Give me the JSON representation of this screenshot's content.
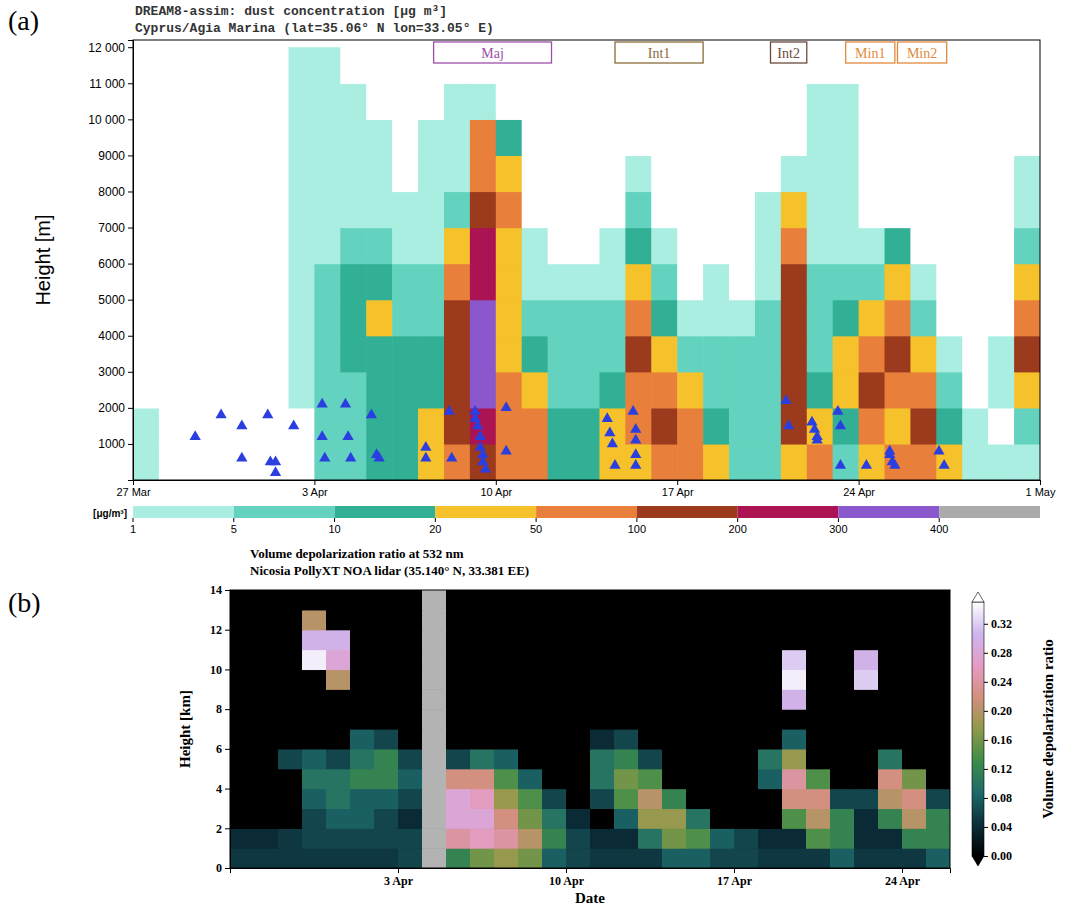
{
  "chart_data": [
    {
      "panel": "(a)",
      "type": "heatmap",
      "title": "DREAM8-assim: dust concentration [μg m³]",
      "subtitle": "Cyprus/Agia Marina (lat=35.06° N lon=33.05° E)",
      "ylabel": "Height [m]",
      "xlim": [
        0,
        35
      ],
      "xticks": [
        {
          "value": 0,
          "label": "27 Mar"
        },
        {
          "value": 7,
          "label": "3 Apr"
        },
        {
          "value": 14,
          "label": "10 Apr"
        },
        {
          "value": 21,
          "label": "17 Apr"
        },
        {
          "value": 28,
          "label": "24 Apr"
        },
        {
          "value": 35,
          "label": "1 May"
        }
      ],
      "ylim": [
        0,
        12200
      ],
      "yticks": [
        1000,
        2000,
        3000,
        4000,
        5000,
        6000,
        7000,
        8000,
        9000,
        {
          "value": 10000,
          "label": "10 000"
        },
        {
          "value": 11000,
          "label": "11 000"
        },
        {
          "value": 12000,
          "label": "12 000"
        }
      ],
      "x_edges": [
        0,
        1,
        2,
        3,
        4,
        5,
        6,
        7,
        8,
        9,
        10,
        11,
        12,
        13,
        14,
        15,
        16,
        17,
        18,
        19,
        20,
        21,
        22,
        23,
        24,
        25,
        26,
        27,
        28,
        29,
        30,
        31,
        32,
        33,
        34,
        35
      ],
      "y_edges": [
        0,
        1000,
        2000,
        3000,
        4000,
        5000,
        6000,
        7000,
        8000,
        9000,
        10000,
        11000,
        12000
      ],
      "z": [
        [
          2,
          0,
          0,
          0,
          0,
          0,
          0,
          5,
          7,
          15,
          15,
          30,
          70,
          150,
          70,
          70,
          15,
          15,
          30,
          30,
          70,
          70,
          30,
          8,
          8,
          30,
          70,
          8,
          30,
          70,
          70,
          30,
          3,
          2,
          3
        ],
        [
          2,
          0,
          0,
          0,
          0,
          0,
          0,
          5,
          7,
          12,
          12,
          30,
          150,
          250,
          70,
          70,
          15,
          15,
          30,
          70,
          150,
          70,
          15,
          8,
          8,
          150,
          30,
          15,
          70,
          30,
          150,
          15,
          2,
          0,
          8
        ],
        [
          0,
          0,
          0,
          0,
          0,
          0,
          2,
          5,
          8,
          12,
          12,
          15,
          150,
          350,
          70,
          30,
          7,
          8,
          15,
          70,
          70,
          30,
          8,
          7,
          7,
          150,
          15,
          30,
          150,
          70,
          70,
          7,
          0,
          3,
          30
        ],
        [
          0,
          0,
          0,
          0,
          0,
          0,
          2,
          5,
          15,
          15,
          12,
          15,
          150,
          350,
          30,
          15,
          7,
          8,
          8,
          150,
          30,
          8,
          8,
          7,
          8,
          150,
          8,
          30,
          70,
          150,
          30,
          3,
          0,
          3,
          150
        ],
        [
          0,
          0,
          0,
          0,
          0,
          0,
          2,
          5,
          15,
          30,
          8,
          8,
          150,
          350,
          30,
          7,
          7,
          7,
          8,
          70,
          15,
          3,
          3,
          3,
          8,
          150,
          7,
          15,
          30,
          70,
          8,
          0,
          0,
          0,
          70
        ],
        [
          0,
          0,
          0,
          0,
          0,
          0,
          2,
          5,
          15,
          15,
          7,
          7,
          70,
          250,
          30,
          3,
          3,
          3,
          3,
          30,
          7,
          0,
          3,
          0,
          3,
          150,
          7,
          7,
          7,
          30,
          3,
          0,
          0,
          0,
          30
        ],
        [
          0,
          0,
          0,
          0,
          0,
          0,
          2,
          3,
          8,
          7,
          3,
          3,
          30,
          250,
          30,
          3,
          0,
          0,
          2,
          15,
          3,
          0,
          0,
          0,
          3,
          70,
          3,
          3,
          3,
          15,
          0,
          0,
          0,
          0,
          7
        ],
        [
          0,
          0,
          0,
          0,
          0,
          0,
          2,
          3,
          3,
          3,
          2,
          3,
          7,
          150,
          70,
          0,
          0,
          0,
          0,
          7,
          0,
          0,
          0,
          0,
          3,
          30,
          3,
          2,
          0,
          0,
          0,
          0,
          0,
          0,
          3
        ],
        [
          0,
          0,
          0,
          0,
          0,
          0,
          2,
          3,
          3,
          2,
          0,
          2,
          3,
          70,
          30,
          0,
          0,
          0,
          0,
          3,
          0,
          0,
          0,
          0,
          0,
          3,
          2,
          2,
          0,
          0,
          0,
          0,
          0,
          0,
          2
        ],
        [
          0,
          0,
          0,
          0,
          0,
          0,
          2,
          2,
          2,
          2,
          0,
          2,
          2,
          70,
          15,
          0,
          0,
          0,
          0,
          0,
          0,
          0,
          0,
          0,
          0,
          0,
          2,
          2,
          0,
          0,
          0,
          0,
          0,
          0,
          0
        ],
        [
          0,
          0,
          0,
          0,
          0,
          0,
          2,
          2,
          2,
          0,
          0,
          0,
          2,
          3,
          0,
          0,
          0,
          0,
          0,
          0,
          0,
          0,
          0,
          0,
          0,
          0,
          2,
          2,
          0,
          0,
          0,
          0,
          0,
          0,
          0
        ],
        [
          0,
          0,
          0,
          0,
          0,
          0,
          2,
          2,
          0,
          0,
          0,
          0,
          0,
          0,
          0,
          0,
          0,
          0,
          0,
          0,
          0,
          0,
          0,
          0,
          0,
          0,
          0,
          0,
          0,
          0,
          0,
          0,
          0,
          0,
          0
        ]
      ],
      "colorbar": {
        "label": "[μg/m³]",
        "levels": [
          1,
          5,
          10,
          20,
          50,
          100,
          200,
          300,
          400
        ],
        "colors": [
          "#aaeee2",
          "#63d3bf",
          "#31b096",
          "#f5c22c",
          "#e8803c",
          "#9c3a1e",
          "#ac1352",
          "#8a58cc",
          "#aaaaaa"
        ]
      },
      "events": [
        {
          "label": "Maj",
          "start": 11.6,
          "end": 16.15,
          "color": "#9b4fa8"
        },
        {
          "label": "Int1",
          "start": 18.6,
          "end": 22.0,
          "color": "#8a6a3a"
        },
        {
          "label": "Int2",
          "start": 24.6,
          "end": 26.0,
          "color": "#6b4a3a"
        },
        {
          "label": "Min1",
          "start": 27.5,
          "end": 29.4,
          "color": "#e08a3c"
        },
        {
          "label": "Min2",
          "start": 29.5,
          "end": 31.4,
          "color": "#e08a3c"
        }
      ],
      "scatter": {
        "color": "#2b3fe0",
        "marker": "triangle",
        "x": [
          2.4,
          3.4,
          4.2,
          4.2,
          5.2,
          5.3,
          5.5,
          5.5,
          6.2,
          7.3,
          7.3,
          7.4,
          8.2,
          8.3,
          8.4,
          9.2,
          9.4,
          9.5,
          11.3,
          11.3,
          12.2,
          12.3,
          13.2,
          13.2,
          13.3,
          13.4,
          13.4,
          13.5,
          13.5,
          13.6,
          14.4,
          14.4,
          18.3,
          18.4,
          18.5,
          18.6,
          19.3,
          19.4,
          19.4,
          19.4,
          19.4,
          25.2,
          25.3,
          26.2,
          26.3,
          26.4,
          26.4,
          27.2,
          27.3,
          27.3,
          28.3,
          29.2,
          29.2,
          29.3,
          29.4,
          31.1,
          31.3
        ],
        "y": [
          1200,
          1800,
          600,
          1500,
          1800,
          500,
          500,
          200,
          1500,
          2100,
          1200,
          600,
          2100,
          1200,
          600,
          1800,
          700,
          600,
          900,
          600,
          1900,
          600,
          1900,
          1700,
          1500,
          1200,
          900,
          700,
          500,
          300,
          2000,
          800,
          1700,
          1300,
          1000,
          400,
          1900,
          1400,
          1100,
          700,
          400,
          2200,
          1500,
          1600,
          1400,
          1200,
          1100,
          1900,
          1500,
          400,
          400,
          800,
          700,
          500,
          400,
          800,
          400
        ]
      }
    },
    {
      "panel": "(b)",
      "type": "heatmap",
      "title": "Volume depolarization ratio at 532 nm",
      "subtitle": "Nicosia PollyXT NOA lidar (35.140° N, 33.381 EE)",
      "xlabel": "Date",
      "ylabel": "Height [km]",
      "xlim": [
        0,
        30
      ],
      "xticks": [
        {
          "value": 7,
          "label": "3 Apr"
        },
        {
          "value": 14,
          "label": "10 Apr"
        },
        {
          "value": 21,
          "label": "17 Apr"
        },
        {
          "value": 28,
          "label": "24 Apr"
        }
      ],
      "ylim": [
        0,
        14
      ],
      "yticks": [
        0,
        2,
        4,
        6,
        8,
        10,
        12,
        14
      ],
      "x_edges": [
        0,
        1,
        2,
        3,
        4,
        5,
        6,
        7,
        8,
        9,
        10,
        11,
        12,
        13,
        14,
        15,
        16,
        17,
        18,
        19,
        20,
        21,
        22,
        23,
        24,
        25,
        26,
        27,
        28,
        29,
        30
      ],
      "y_edges": [
        0,
        1,
        2,
        3,
        4,
        5,
        6,
        7,
        8,
        9,
        10,
        11,
        12,
        13,
        14
      ],
      "z": [
        [
          0.05,
          0.05,
          0.05,
          0.05,
          0.05,
          0.05,
          0.05,
          0.06,
          null,
          0.12,
          0.16,
          0.18,
          0.16,
          0.08,
          0.06,
          0.05,
          0.05,
          0.05,
          0.08,
          0.08,
          0.06,
          0.06,
          0.05,
          0.05,
          0.05,
          0.08,
          0.05,
          0.05,
          0.05,
          0.08
        ],
        [
          0.04,
          0.04,
          0.05,
          0.06,
          0.06,
          0.06,
          0.06,
          0.06,
          null,
          0.24,
          0.26,
          0.24,
          0.2,
          0.12,
          0.06,
          0.04,
          0.04,
          0.1,
          0.16,
          0.14,
          0.08,
          0.06,
          0.04,
          0.04,
          0.14,
          0.12,
          0.04,
          0.04,
          0.12,
          0.12
        ],
        [
          0,
          0,
          0,
          0.06,
          0.08,
          0.08,
          0.06,
          0.04,
          null,
          0.28,
          0.28,
          0.22,
          0.16,
          0.1,
          0.04,
          0,
          0.08,
          0.18,
          0.18,
          0.1,
          0,
          0,
          0,
          0.14,
          0.2,
          0.12,
          0.04,
          0.12,
          0.2,
          0.12
        ],
        [
          0,
          0,
          0,
          0.08,
          0.1,
          0.08,
          0.08,
          0.06,
          null,
          0.28,
          0.26,
          0.18,
          0.14,
          0.06,
          0,
          0.06,
          0.14,
          0.2,
          0.12,
          0,
          0,
          0,
          0,
          0.22,
          0.22,
          0.06,
          0.06,
          0.2,
          0.22,
          0.06
        ],
        [
          0,
          0,
          0,
          0.1,
          0.1,
          0.12,
          0.12,
          0.08,
          null,
          0.22,
          0.22,
          0.14,
          0.08,
          0,
          0,
          0.1,
          0.16,
          0.14,
          0,
          0,
          0,
          0,
          0.08,
          0.24,
          0.14,
          0,
          0,
          0.22,
          0.16,
          0
        ],
        [
          0,
          0,
          0.06,
          0.08,
          0.06,
          0.1,
          0.12,
          0.06,
          null,
          0.06,
          0.1,
          0.08,
          0,
          0,
          0,
          0.1,
          0.12,
          0.06,
          0,
          0,
          0,
          0,
          0.1,
          0.18,
          0,
          0,
          0,
          0.1,
          0,
          0
        ],
        [
          0,
          0,
          0,
          0,
          0,
          0.08,
          0.06,
          0,
          null,
          0,
          0,
          0,
          0,
          0,
          0,
          0.04,
          0.06,
          0,
          0,
          0,
          0,
          0,
          0,
          0.08,
          0,
          0,
          0,
          0,
          0,
          0
        ],
        [
          0,
          0,
          0,
          0,
          0,
          0,
          0,
          0,
          null,
          0,
          0,
          0,
          0,
          0,
          0,
          0,
          0,
          0,
          0,
          0,
          0,
          0,
          0,
          0,
          0,
          0,
          0,
          0,
          0,
          0
        ],
        [
          0,
          0,
          0,
          0,
          0,
          0,
          0,
          0,
          null,
          0,
          0,
          0,
          0,
          0,
          0,
          0,
          0,
          0,
          0,
          0,
          0,
          0,
          0,
          0.3,
          0,
          0,
          0,
          0,
          0,
          0
        ],
        [
          0,
          0,
          0,
          0,
          0.2,
          0,
          0,
          0,
          null,
          0,
          0,
          0,
          0,
          0,
          0,
          0,
          0,
          0,
          0,
          0,
          0,
          0,
          0,
          0.34,
          0,
          0,
          0.32,
          0,
          0,
          0
        ],
        [
          0,
          0,
          0,
          0.34,
          0.28,
          0,
          0,
          0,
          null,
          0,
          0,
          0,
          0,
          0,
          0,
          0,
          0,
          0,
          0,
          0,
          0,
          0,
          0,
          0.32,
          0,
          0,
          0.3,
          0,
          0,
          0
        ],
        [
          0,
          0,
          0,
          0.3,
          0.3,
          0,
          0,
          0,
          null,
          0,
          0,
          0,
          0,
          0,
          0,
          0,
          0,
          0,
          0,
          0,
          0,
          0,
          0,
          0,
          0,
          0,
          0,
          0,
          0,
          0
        ],
        [
          0,
          0,
          0,
          0.2,
          0,
          0,
          0,
          0,
          null,
          0,
          0,
          0,
          0,
          0,
          0,
          0,
          0,
          0,
          0,
          0,
          0,
          0,
          0,
          0,
          0,
          0,
          0,
          0,
          0,
          0
        ],
        [
          0,
          0,
          0,
          0,
          0,
          0,
          0,
          0,
          null,
          0,
          0,
          0,
          0,
          0,
          0,
          0,
          0,
          0,
          0,
          0,
          0,
          0,
          0,
          0,
          0,
          0,
          0,
          0,
          0,
          0
        ]
      ],
      "colorbar": {
        "label": "Volume depolarization ratio",
        "range": [
          0,
          0.35
        ],
        "ticks": [
          {
            "value": 0,
            "label": "0.00"
          },
          {
            "value": 0.04,
            "label": "0.04"
          },
          {
            "value": 0.08,
            "label": "0.08"
          },
          {
            "value": 0.12,
            "label": "0.12"
          },
          {
            "value": 0.16,
            "label": "0.16"
          },
          {
            "value": 0.2,
            "label": "0.20"
          },
          {
            "value": 0.24,
            "label": "0.24"
          },
          {
            "value": 0.28,
            "label": "0.28"
          },
          {
            "value": 0.32,
            "label": "0.32"
          }
        ],
        "colors": [
          "#000000",
          "#0b2f3a",
          "#1d6a6a",
          "#3e8c4a",
          "#8f9a48",
          "#d38f7e",
          "#e49cc4",
          "#cdb6ee",
          "#ffffff"
        ]
      }
    }
  ]
}
